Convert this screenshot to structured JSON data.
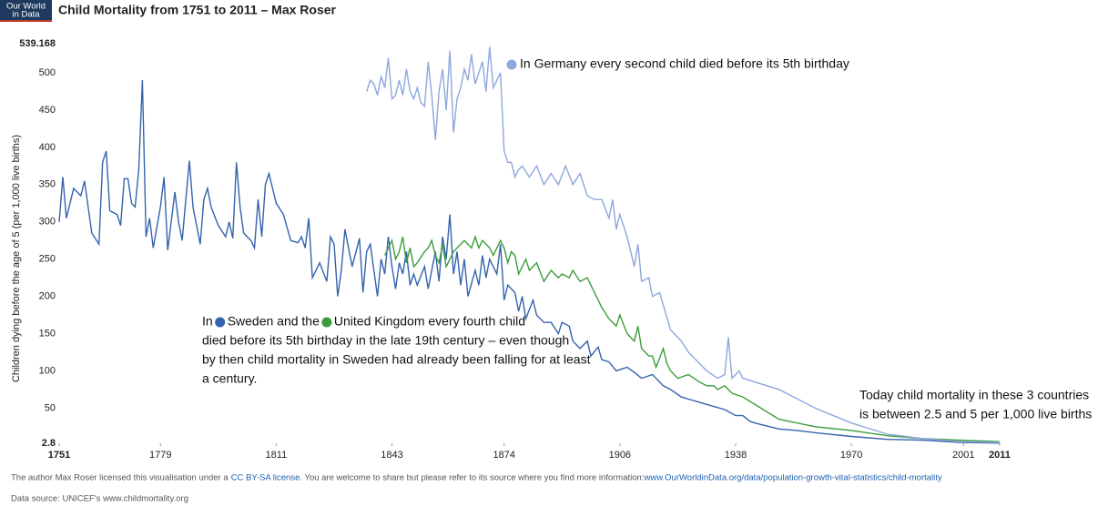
{
  "logo": {
    "lines": [
      "Our World",
      "in Data"
    ]
  },
  "chart_data": {
    "type": "line",
    "title": "Child Mortality from 1751 to 2011 – Max Roser",
    "y_label": "Children dying before the age of 5 (per 1,000 live births)",
    "xlim": [
      1751,
      2011
    ],
    "xticks": [
      1751,
      1779,
      1811,
      1843,
      1874,
      1906,
      1938,
      1970,
      2001,
      2011
    ],
    "ylim": [
      2.8,
      539.168
    ],
    "yticks": [
      2.8,
      50,
      100,
      150,
      200,
      250,
      300,
      350,
      400,
      450,
      500,
      539.168
    ],
    "grid": false,
    "series": [
      {
        "name": "Sweden",
        "color": "#3563ad",
        "x": [
          1751,
          1752,
          1753,
          1755,
          1757,
          1758,
          1760,
          1762,
          1763,
          1764,
          1765,
          1767,
          1768,
          1769,
          1770,
          1771,
          1772,
          1773,
          1774,
          1775,
          1776,
          1777,
          1779,
          1780,
          1781,
          1783,
          1784,
          1785,
          1786,
          1787,
          1788,
          1790,
          1791,
          1792,
          1793,
          1795,
          1797,
          1798,
          1799,
          1800,
          1801,
          1802,
          1804,
          1805,
          1806,
          1807,
          1808,
          1809,
          1810,
          1811,
          1813,
          1815,
          1817,
          1818,
          1819,
          1820,
          1821,
          1823,
          1825,
          1826,
          1827,
          1828,
          1829,
          1830,
          1831,
          1832,
          1834,
          1835,
          1836,
          1837,
          1839,
          1840,
          1841,
          1842,
          1843,
          1844,
          1845,
          1846,
          1847,
          1848,
          1849,
          1850,
          1852,
          1853,
          1855,
          1856,
          1857,
          1858,
          1859,
          1860,
          1861,
          1862,
          1863,
          1864,
          1866,
          1867,
          1868,
          1869,
          1870,
          1872,
          1873,
          1874,
          1875,
          1877,
          1878,
          1879,
          1880,
          1882,
          1883,
          1885,
          1887,
          1889,
          1890,
          1892,
          1893,
          1895,
          1897,
          1898,
          1900,
          1901,
          1903,
          1905,
          1908,
          1910,
          1912,
          1915,
          1918,
          1920,
          1923,
          1925,
          1930,
          1935,
          1938,
          1940,
          1942,
          1945,
          1950,
          1955,
          1960,
          1970,
          1980,
          1990,
          2000,
          2011
        ],
        "values": [
          300,
          360,
          305,
          345,
          335,
          355,
          285,
          270,
          380,
          395,
          315,
          310,
          295,
          358,
          358,
          325,
          320,
          370,
          490,
          280,
          305,
          265,
          320,
          360,
          262,
          340,
          300,
          275,
          330,
          382,
          320,
          270,
          330,
          345,
          320,
          295,
          280,
          300,
          278,
          380,
          320,
          285,
          275,
          265,
          330,
          280,
          350,
          365,
          345,
          325,
          310,
          275,
          272,
          280,
          265,
          305,
          225,
          245,
          220,
          280,
          270,
          200,
          235,
          290,
          265,
          240,
          278,
          205,
          260,
          270,
          200,
          250,
          230,
          280,
          240,
          210,
          245,
          230,
          260,
          215,
          230,
          215,
          240,
          210,
          260,
          220,
          280,
          250,
          310,
          230,
          260,
          215,
          250,
          200,
          235,
          215,
          255,
          225,
          250,
          230,
          270,
          195,
          215,
          205,
          180,
          200,
          170,
          195,
          175,
          165,
          165,
          150,
          165,
          160,
          140,
          130,
          140,
          120,
          132,
          115,
          112,
          100,
          105,
          98,
          90,
          95,
          80,
          75,
          65,
          62,
          55,
          48,
          40,
          40,
          32,
          28,
          22,
          20,
          17,
          12,
          8,
          7,
          4,
          3
        ]
      },
      {
        "name": "United Kingdom",
        "color": "#3c9c3c",
        "x": [
          1841,
          1842,
          1843,
          1844,
          1845,
          1846,
          1847,
          1848,
          1849,
          1850,
          1852,
          1853,
          1854,
          1855,
          1856,
          1857,
          1858,
          1860,
          1862,
          1863,
          1865,
          1866,
          1867,
          1868,
          1870,
          1871,
          1873,
          1874,
          1875,
          1876,
          1877,
          1878,
          1880,
          1881,
          1883,
          1885,
          1887,
          1889,
          1890,
          1892,
          1893,
          1895,
          1897,
          1898,
          1900,
          1901,
          1903,
          1905,
          1906,
          1908,
          1910,
          1911,
          1912,
          1914,
          1915,
          1916,
          1918,
          1919,
          1920,
          1922,
          1925,
          1928,
          1930,
          1932,
          1933,
          1935,
          1937,
          1940,
          1945,
          1950,
          1960,
          1970,
          1980,
          1990,
          2000,
          2011
        ],
        "values": [
          255,
          265,
          275,
          250,
          260,
          280,
          245,
          265,
          240,
          245,
          260,
          265,
          275,
          255,
          245,
          270,
          240,
          260,
          270,
          275,
          265,
          280,
          265,
          275,
          265,
          255,
          275,
          265,
          245,
          260,
          255,
          230,
          250,
          235,
          245,
          220,
          235,
          225,
          230,
          225,
          235,
          220,
          225,
          215,
          195,
          185,
          170,
          160,
          175,
          150,
          140,
          160,
          130,
          120,
          120,
          105,
          130,
          110,
          100,
          90,
          95,
          85,
          80,
          80,
          75,
          80,
          70,
          65,
          50,
          35,
          25,
          20,
          13,
          9,
          7,
          5
        ]
      },
      {
        "name": "Germany",
        "color": "#8ea7dd",
        "x": [
          1836,
          1837,
          1838,
          1839,
          1840,
          1841,
          1842,
          1843,
          1844,
          1845,
          1846,
          1847,
          1848,
          1849,
          1850,
          1851,
          1852,
          1853,
          1854,
          1855,
          1856,
          1857,
          1858,
          1859,
          1860,
          1861,
          1862,
          1863,
          1864,
          1865,
          1866,
          1867,
          1868,
          1869,
          1870,
          1871,
          1872,
          1873,
          1874,
          1875,
          1876,
          1877,
          1878,
          1879,
          1881,
          1883,
          1885,
          1887,
          1889,
          1891,
          1893,
          1895,
          1897,
          1899,
          1901,
          1903,
          1904,
          1905,
          1906,
          1908,
          1910,
          1911,
          1912,
          1914,
          1915,
          1917,
          1920,
          1923,
          1925,
          1930,
          1933,
          1935,
          1936,
          1937,
          1938,
          1939,
          1940,
          1950,
          1960,
          1970,
          1980,
          1990,
          2000,
          2011
        ],
        "values": [
          475,
          490,
          485,
          470,
          495,
          480,
          520,
          465,
          470,
          490,
          470,
          505,
          475,
          465,
          480,
          460,
          455,
          515,
          470,
          410,
          475,
          505,
          450,
          530,
          420,
          465,
          480,
          505,
          490,
          525,
          485,
          500,
          515,
          475,
          535,
          480,
          490,
          500,
          395,
          380,
          380,
          360,
          370,
          375,
          360,
          375,
          350,
          365,
          350,
          375,
          350,
          365,
          335,
          330,
          330,
          305,
          330,
          290,
          310,
          280,
          240,
          270,
          220,
          225,
          200,
          205,
          155,
          140,
          125,
          100,
          90,
          95,
          145,
          90,
          95,
          100,
          90,
          75,
          50,
          30,
          15,
          9,
          5,
          4
        ]
      }
    ],
    "annotations": [
      {
        "lines": [
          [
            "In Germany every second child died before its 5th birthday"
          ]
        ]
      },
      {
        "lines": [
          [
            "In",
            "Sweden and the",
            "United Kingdom every fourth child"
          ],
          [
            "died before its 5th birthday in the late 19th century – even though"
          ],
          [
            "by then child mortality in Sweden had already been falling for at least"
          ],
          [
            "a century."
          ]
        ]
      },
      {
        "lines": [
          [
            "Today child mortality in these 3 countries"
          ],
          [
            "is between 2.5 and 5 per 1,000 live births"
          ]
        ]
      }
    ]
  },
  "footer": {
    "license": [
      "The author Max Roser licensed this visualisation under a",
      "CC BY-SA license",
      ". You are welcome to share but please refer to its source where you find more information:",
      "www.OurWorldinData.org/data/population-growth-vital-statistics/child-mortality"
    ],
    "source": "Data source: UNICEF's www.childmortality.org"
  }
}
